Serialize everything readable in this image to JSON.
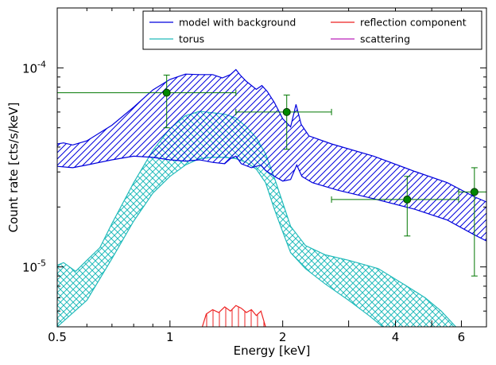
{
  "chart_data": {
    "type": "line",
    "title": "",
    "xlabel": "Energy [keV]",
    "ylabel": "Count rate [cts/s/keV]",
    "xscale": "log",
    "yscale": "log",
    "xlim": [
      0.5,
      7.0
    ],
    "ylim": [
      5e-06,
      0.0002
    ],
    "x_ticks": [
      {
        "value": 0.5,
        "label": "0.5"
      },
      {
        "value": 1,
        "label": "1"
      },
      {
        "value": 2,
        "label": "2"
      },
      {
        "value": 4,
        "label": "4"
      },
      {
        "value": 6,
        "label": "6"
      }
    ],
    "y_ticks": [
      {
        "value": 0.0001,
        "base": "10",
        "exp": "-4"
      },
      {
        "value": 1e-05,
        "base": "10",
        "exp": "-5"
      }
    ],
    "legend": {
      "position": "top-right",
      "columns": 2,
      "entries": [
        {
          "label": "model with background",
          "color": "#0000dd"
        },
        {
          "label": "reflection component",
          "color": "#ee2222"
        },
        {
          "label": "torus",
          "color": "#22bbbb"
        },
        {
          "label": "scattering",
          "color": "#bb22bb"
        }
      ]
    },
    "bands": [
      {
        "name": "model with background",
        "color": "#0000dd",
        "hatch": "diagonal",
        "upper": [
          [
            0.5,
            4.15e-05
          ],
          [
            0.52,
            4.2e-05
          ],
          [
            0.55,
            4.1e-05
          ],
          [
            0.6,
            4.3e-05
          ],
          [
            0.7,
            5.15e-05
          ],
          [
            0.8,
            6.35e-05
          ],
          [
            0.9,
            7.75e-05
          ],
          [
            1.0,
            8.75e-05
          ],
          [
            1.1,
            9.3e-05
          ],
          [
            1.2,
            9.25e-05
          ],
          [
            1.3,
            9.25e-05
          ],
          [
            1.38,
            8.9e-05
          ],
          [
            1.45,
            9.25e-05
          ],
          [
            1.5,
            9.8e-05
          ],
          [
            1.54,
            9.2e-05
          ],
          [
            1.6,
            8.55e-05
          ],
          [
            1.7,
            7.8e-05
          ],
          [
            1.76,
            8.15e-05
          ],
          [
            1.82,
            7.6e-05
          ],
          [
            1.9,
            6.7e-05
          ],
          [
            2.0,
            5.55e-05
          ],
          [
            2.1,
            5.05e-05
          ],
          [
            2.17,
            6.55e-05
          ],
          [
            2.24,
            5.2e-05
          ],
          [
            2.35,
            4.55e-05
          ],
          [
            2.7,
            4.15e-05
          ],
          [
            3.5,
            3.6e-05
          ],
          [
            4.5,
            3.02e-05
          ],
          [
            5.5,
            2.65e-05
          ],
          [
            6.5,
            2.25e-05
          ],
          [
            7.0,
            2.12e-05
          ]
        ],
        "lower": [
          [
            0.5,
            3.2e-05
          ],
          [
            0.55,
            3.15e-05
          ],
          [
            0.6,
            3.25e-05
          ],
          [
            0.7,
            3.45e-05
          ],
          [
            0.8,
            3.6e-05
          ],
          [
            0.9,
            3.55e-05
          ],
          [
            1.0,
            3.45e-05
          ],
          [
            1.1,
            3.4e-05
          ],
          [
            1.2,
            3.45e-05
          ],
          [
            1.3,
            3.35e-05
          ],
          [
            1.4,
            3.3e-05
          ],
          [
            1.45,
            3.5e-05
          ],
          [
            1.5,
            3.6e-05
          ],
          [
            1.55,
            3.3e-05
          ],
          [
            1.65,
            3.15e-05
          ],
          [
            1.75,
            3.25e-05
          ],
          [
            1.8,
            3.05e-05
          ],
          [
            1.9,
            2.85e-05
          ],
          [
            2.0,
            2.7e-05
          ],
          [
            2.1,
            2.75e-05
          ],
          [
            2.18,
            3.25e-05
          ],
          [
            2.25,
            2.85e-05
          ],
          [
            2.4,
            2.65e-05
          ],
          [
            2.8,
            2.43e-05
          ],
          [
            3.5,
            2.2e-05
          ],
          [
            4.5,
            1.95e-05
          ],
          [
            5.5,
            1.72e-05
          ],
          [
            6.5,
            1.45e-05
          ],
          [
            7.0,
            1.35e-05
          ]
        ]
      },
      {
        "name": "torus",
        "color": "#22bbbb",
        "hatch": "cross",
        "upper": [
          [
            0.5,
            1.02e-05
          ],
          [
            0.52,
            1.05e-05
          ],
          [
            0.56,
            9.5e-06
          ],
          [
            0.6,
            1.08e-05
          ],
          [
            0.65,
            1.25e-05
          ],
          [
            0.7,
            1.65e-05
          ],
          [
            0.8,
            2.65e-05
          ],
          [
            0.9,
            3.85e-05
          ],
          [
            1.0,
            4.95e-05
          ],
          [
            1.1,
            5.75e-05
          ],
          [
            1.2,
            6.05e-05
          ],
          [
            1.3,
            5.95e-05
          ],
          [
            1.4,
            5.85e-05
          ],
          [
            1.5,
            5.6e-05
          ],
          [
            1.6,
            5.05e-05
          ],
          [
            1.7,
            4.45e-05
          ],
          [
            1.8,
            3.7e-05
          ],
          [
            1.9,
            2.8e-05
          ],
          [
            2.0,
            2.1e-05
          ],
          [
            2.1,
            1.6e-05
          ],
          [
            2.3,
            1.28e-05
          ],
          [
            2.6,
            1.15e-05
          ],
          [
            3.0,
            1.08e-05
          ],
          [
            3.6,
            9.8e-06
          ],
          [
            4.2,
            8.2e-06
          ],
          [
            4.8,
            7e-06
          ],
          [
            5.3,
            6e-06
          ],
          [
            5.8,
            5e-06
          ]
        ],
        "lower": [
          [
            0.5,
            5e-06
          ],
          [
            0.6,
            6.8e-06
          ],
          [
            0.7,
            1.1e-05
          ],
          [
            0.8,
            1.7e-05
          ],
          [
            0.9,
            2.35e-05
          ],
          [
            1.0,
            2.85e-05
          ],
          [
            1.1,
            3.25e-05
          ],
          [
            1.2,
            3.5e-05
          ],
          [
            1.3,
            3.55e-05
          ],
          [
            1.4,
            3.55e-05
          ],
          [
            1.5,
            3.5e-05
          ],
          [
            1.6,
            3.35e-05
          ],
          [
            1.7,
            3.1e-05
          ],
          [
            1.8,
            2.65e-05
          ],
          [
            1.9,
            1.95e-05
          ],
          [
            2.0,
            1.5e-05
          ],
          [
            2.1,
            1.18e-05
          ],
          [
            2.3,
            9.8e-06
          ],
          [
            2.6,
            8.2e-06
          ],
          [
            3.0,
            6.8e-06
          ],
          [
            3.4,
            5.7e-06
          ],
          [
            3.7,
            5e-06
          ]
        ]
      }
    ],
    "reflection_component": {
      "name": "reflection component",
      "color": "#ee2222",
      "points": [
        [
          1.22,
          5e-06
        ],
        [
          1.25,
          5.8e-06
        ],
        [
          1.3,
          6.1e-06
        ],
        [
          1.35,
          5.9e-06
        ],
        [
          1.4,
          6.3e-06
        ],
        [
          1.45,
          6e-06
        ],
        [
          1.5,
          6.4e-06
        ],
        [
          1.55,
          6.2e-06
        ],
        [
          1.6,
          5.9e-06
        ],
        [
          1.65,
          6.1e-06
        ],
        [
          1.7,
          5.7e-06
        ],
        [
          1.75,
          6e-06
        ],
        [
          1.8,
          5e-06
        ]
      ]
    },
    "data_points": [
      {
        "x": 0.98,
        "y": 7.5e-05,
        "xlo": 0.5,
        "xhi": 1.5,
        "ylo": 5e-05,
        "yhi": 9.2e-05
      },
      {
        "x": 2.05,
        "y": 6e-05,
        "xlo": 1.5,
        "xhi": 2.7,
        "ylo": 3.9e-05,
        "yhi": 7.3e-05
      },
      {
        "x": 4.3,
        "y": 2.18e-05,
        "xlo": 2.7,
        "xhi": 5.9,
        "ylo": 1.43e-05,
        "yhi": 2.85e-05
      },
      {
        "x": 6.5,
        "y": 2.38e-05,
        "xlo": 5.9,
        "xhi": 7.0,
        "ylo": 9e-06,
        "yhi": 3.15e-05
      }
    ],
    "data_color": "#007700",
    "marker_fill": "#008800",
    "grid": false
  }
}
